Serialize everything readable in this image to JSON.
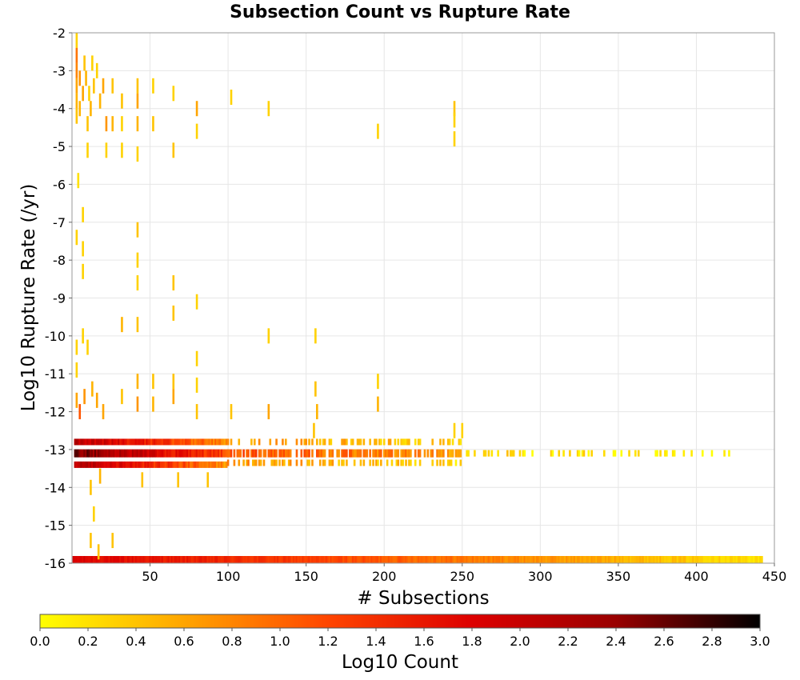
{
  "chart_data": {
    "type": "heatmap",
    "title": "Subsection Count vs Rupture Rate",
    "xlabel": "# Subsections",
    "ylabel": "Log10 Rupture Rate (/yr)",
    "xlim": [
      0,
      450
    ],
    "ylim": [
      -16,
      -2
    ],
    "xticks": [
      "50",
      "100",
      "150",
      "200",
      "250",
      "300",
      "350",
      "400",
      "450"
    ],
    "yticks": [
      "-2",
      "-3",
      "-4",
      "-5",
      "-6",
      "-7",
      "-8",
      "-9",
      "-10",
      "-11",
      "-12",
      "-13",
      "-14",
      "-15",
      "-16"
    ],
    "grid": true,
    "colorbar": {
      "label": "Log10 Count",
      "range": [
        0,
        3
      ],
      "ticks": [
        "0.0",
        "0.2",
        "0.4",
        "0.6",
        "0.8",
        "1.0",
        "1.2",
        "1.4",
        "1.6",
        "1.8",
        "2.0",
        "2.2",
        "2.4",
        "2.6",
        "2.8",
        "3.0"
      ],
      "colors": [
        "#ffff00",
        "#ffa500",
        "#ff4500",
        "#dd0000",
        "#990000",
        "#000000"
      ]
    },
    "bands": [
      {
        "name": "rate -16 band",
        "y": -16.0,
        "x_range": [
          1,
          442
        ],
        "log10_count_start": 1.8,
        "log10_count_end": 0.2
      },
      {
        "name": "rate -13 band core",
        "y": -13.0,
        "x_range": [
          2,
          100
        ],
        "log10_count_start": 2.3,
        "log10_count_end": 0.9
      },
      {
        "name": "rate -13 band mid",
        "y": -13.0,
        "x_range": [
          100,
          250
        ],
        "log10_count_start": 0.9,
        "log10_count_end": 0.4
      },
      {
        "name": "rate -13 band tail",
        "y": -13.0,
        "x_range": [
          250,
          423
        ],
        "log10_count_start": 0.4,
        "log10_count_end": 0.2
      }
    ],
    "points": [
      {
        "x": 3,
        "y": -2.2,
        "v": 0.3
      },
      {
        "x": 3,
        "y": -2.6,
        "v": 0.9
      },
      {
        "x": 3,
        "y": -3.0,
        "v": 0.8
      },
      {
        "x": 3,
        "y": -3.4,
        "v": 0.6
      },
      {
        "x": 3,
        "y": -3.8,
        "v": 0.5
      },
      {
        "x": 3,
        "y": -4.2,
        "v": 0.4
      },
      {
        "x": 5,
        "y": -3.2,
        "v": 0.7
      },
      {
        "x": 5,
        "y": -4.0,
        "v": 0.5
      },
      {
        "x": 7,
        "y": -3.6,
        "v": 0.6
      },
      {
        "x": 8,
        "y": -2.8,
        "v": 0.4
      },
      {
        "x": 9,
        "y": -3.2,
        "v": 0.5
      },
      {
        "x": 10,
        "y": -4.4,
        "v": 0.4
      },
      {
        "x": 11,
        "y": -3.6,
        "v": 0.3
      },
      {
        "x": 12,
        "y": -4.0,
        "v": 0.5
      },
      {
        "x": 13,
        "y": -2.8,
        "v": 0.3
      },
      {
        "x": 14,
        "y": -3.4,
        "v": 0.4
      },
      {
        "x": 16,
        "y": -3.0,
        "v": 0.3
      },
      {
        "x": 18,
        "y": -3.8,
        "v": 0.5
      },
      {
        "x": 20,
        "y": -3.4,
        "v": 0.6
      },
      {
        "x": 22,
        "y": -4.4,
        "v": 0.7
      },
      {
        "x": 26,
        "y": -3.4,
        "v": 0.4
      },
      {
        "x": 26,
        "y": -4.4,
        "v": 0.5
      },
      {
        "x": 32,
        "y": -3.8,
        "v": 0.4
      },
      {
        "x": 32,
        "y": -4.4,
        "v": 0.3
      },
      {
        "x": 42,
        "y": -3.4,
        "v": 0.4
      },
      {
        "x": 42,
        "y": -3.8,
        "v": 0.6
      },
      {
        "x": 42,
        "y": -4.4,
        "v": 0.5
      },
      {
        "x": 42,
        "y": -5.2,
        "v": 0.3
      },
      {
        "x": 52,
        "y": -3.4,
        "v": 0.3
      },
      {
        "x": 52,
        "y": -4.4,
        "v": 0.4
      },
      {
        "x": 65,
        "y": -3.6,
        "v": 0.3
      },
      {
        "x": 65,
        "y": -5.1,
        "v": 0.4
      },
      {
        "x": 80,
        "y": -4.0,
        "v": 0.6
      },
      {
        "x": 80,
        "y": -4.6,
        "v": 0.3
      },
      {
        "x": 102,
        "y": -3.7,
        "v": 0.3
      },
      {
        "x": 126,
        "y": -4.0,
        "v": 0.3
      },
      {
        "x": 196,
        "y": -4.6,
        "v": 0.3
      },
      {
        "x": 245,
        "y": -4.0,
        "v": 0.4
      },
      {
        "x": 245,
        "y": -4.3,
        "v": 0.3
      },
      {
        "x": 245,
        "y": -4.8,
        "v": 0.3
      },
      {
        "x": 22,
        "y": -5.1,
        "v": 0.3
      },
      {
        "x": 32,
        "y": -5.1,
        "v": 0.3
      },
      {
        "x": 10,
        "y": -5.1,
        "v": 0.3
      },
      {
        "x": 4,
        "y": -5.9,
        "v": 0.2
      },
      {
        "x": 7,
        "y": -6.8,
        "v": 0.3
      },
      {
        "x": 3,
        "y": -7.4,
        "v": 0.3
      },
      {
        "x": 7,
        "y": -7.7,
        "v": 0.3
      },
      {
        "x": 42,
        "y": -7.2,
        "v": 0.4
      },
      {
        "x": 42,
        "y": -8.0,
        "v": 0.3
      },
      {
        "x": 7,
        "y": -8.3,
        "v": 0.3
      },
      {
        "x": 42,
        "y": -8.6,
        "v": 0.3
      },
      {
        "x": 65,
        "y": -8.6,
        "v": 0.4
      },
      {
        "x": 65,
        "y": -9.4,
        "v": 0.4
      },
      {
        "x": 80,
        "y": -9.1,
        "v": 0.3
      },
      {
        "x": 32,
        "y": -9.7,
        "v": 0.5
      },
      {
        "x": 42,
        "y": -9.7,
        "v": 0.4
      },
      {
        "x": 7,
        "y": -10.0,
        "v": 0.3
      },
      {
        "x": 3,
        "y": -10.3,
        "v": 0.3
      },
      {
        "x": 10,
        "y": -10.3,
        "v": 0.3
      },
      {
        "x": 126,
        "y": -10.0,
        "v": 0.3
      },
      {
        "x": 156,
        "y": -10.0,
        "v": 0.3
      },
      {
        "x": 80,
        "y": -10.6,
        "v": 0.3
      },
      {
        "x": 3,
        "y": -10.9,
        "v": 0.3
      },
      {
        "x": 42,
        "y": -11.2,
        "v": 0.5
      },
      {
        "x": 52,
        "y": -11.2,
        "v": 0.4
      },
      {
        "x": 65,
        "y": -11.2,
        "v": 0.4
      },
      {
        "x": 80,
        "y": -11.3,
        "v": 0.3
      },
      {
        "x": 196,
        "y": -11.2,
        "v": 0.3
      },
      {
        "x": 156,
        "y": -11.4,
        "v": 0.4
      },
      {
        "x": 3,
        "y": -11.7,
        "v": 0.6
      },
      {
        "x": 5,
        "y": -12.0,
        "v": 1.1
      },
      {
        "x": 8,
        "y": -11.6,
        "v": 0.7
      },
      {
        "x": 13,
        "y": -11.4,
        "v": 0.5
      },
      {
        "x": 16,
        "y": -11.7,
        "v": 0.6
      },
      {
        "x": 20,
        "y": -12.0,
        "v": 0.6
      },
      {
        "x": 32,
        "y": -11.6,
        "v": 0.4
      },
      {
        "x": 42,
        "y": -11.8,
        "v": 0.7
      },
      {
        "x": 52,
        "y": -11.8,
        "v": 0.5
      },
      {
        "x": 65,
        "y": -11.6,
        "v": 0.6
      },
      {
        "x": 80,
        "y": -12.0,
        "v": 0.4
      },
      {
        "x": 102,
        "y": -12.0,
        "v": 0.4
      },
      {
        "x": 126,
        "y": -12.0,
        "v": 0.6
      },
      {
        "x": 157,
        "y": -12.0,
        "v": 0.5
      },
      {
        "x": 196,
        "y": -11.8,
        "v": 0.5
      },
      {
        "x": 245,
        "y": -12.5,
        "v": 0.3
      },
      {
        "x": 250,
        "y": -12.5,
        "v": 0.3
      },
      {
        "x": 155,
        "y": -12.5,
        "v": 0.4
      },
      {
        "x": 18,
        "y": -13.7,
        "v": 0.5
      },
      {
        "x": 45,
        "y": -13.8,
        "v": 0.4
      },
      {
        "x": 68,
        "y": -13.8,
        "v": 0.4
      },
      {
        "x": 87,
        "y": -13.8,
        "v": 0.4
      },
      {
        "x": 12,
        "y": -14.0,
        "v": 0.4
      },
      {
        "x": 14,
        "y": -14.7,
        "v": 0.3
      },
      {
        "x": 12,
        "y": -15.4,
        "v": 0.4
      },
      {
        "x": 26,
        "y": -15.4,
        "v": 0.4
      },
      {
        "x": 17,
        "y": -15.7,
        "v": 0.4
      }
    ]
  }
}
